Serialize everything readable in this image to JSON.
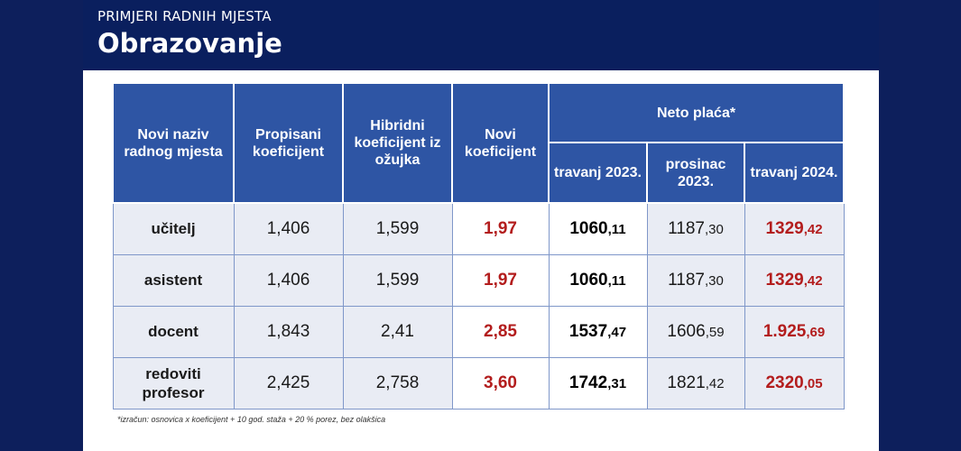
{
  "header": {
    "supertitle": "PRIMJERI RADNIH MJESTA",
    "title": "Obrazovanje"
  },
  "table": {
    "headers": {
      "naziv": "Novi naziv radnog mjesta",
      "propisani": "Propisani koeficijent",
      "hibridni": "Hibridni koeficijent iz ožujka",
      "novi": "Novi koeficijent",
      "neto": "Neto plaća*",
      "sub": [
        "travanj 2023.",
        "prosinac 2023.",
        "travanj 2024."
      ]
    },
    "rows": [
      {
        "naziv": "učitelj",
        "propisani": "1,406",
        "hibridni": "1,599",
        "novi": "1,97",
        "apr23_main": "1060",
        "apr23_dec": ",11",
        "dec23_main": "1187",
        "dec23_dec": ",30",
        "apr24_main": "1329",
        "apr24_dec": ",42"
      },
      {
        "naziv": "asistent",
        "propisani": "1,406",
        "hibridni": "1,599",
        "novi": "1,97",
        "apr23_main": "1060",
        "apr23_dec": ",11",
        "dec23_main": "1187",
        "dec23_dec": ",30",
        "apr24_main": "1329",
        "apr24_dec": ",42"
      },
      {
        "naziv": "docent",
        "propisani": "1,843",
        "hibridni": "2,41",
        "novi": "2,85",
        "apr23_main": "1537",
        "apr23_dec": ",47",
        "dec23_main": "1606",
        "dec23_dec": ",59",
        "apr24_main": "1.925",
        "apr24_dec": ",69"
      },
      {
        "naziv": "redoviti profesor",
        "propisani": "2,425",
        "hibridni": "2,758",
        "novi": "3,60",
        "apr23_main": "1742",
        "apr23_dec": ",31",
        "dec23_main": "1821",
        "dec23_dec": ",42",
        "apr24_main": "2320",
        "apr24_dec": ",05"
      }
    ]
  },
  "footnote": "*izračun: osnovica x koeficijent + 10 god. staža + 20 % porez, bez olakšica",
  "colors": {
    "background": "#0d1f5c",
    "header_fill": "#2e55a4",
    "accent_red": "#b31d1d",
    "row_fill": "#e9ecf4"
  }
}
